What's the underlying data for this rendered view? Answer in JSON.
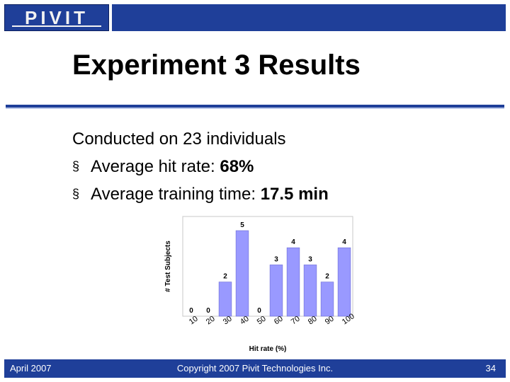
{
  "logo": {
    "text": "PIVIT"
  },
  "slide": {
    "title": "Experiment 3 Results",
    "intro": "Conducted on 23 individuals",
    "bullets": [
      {
        "marker": "§",
        "text": "Average hit rate: ",
        "value": "68%"
      },
      {
        "marker": "§",
        "text": "Average training time: ",
        "value": "17.5 min"
      }
    ]
  },
  "footer": {
    "date": "April 2007",
    "copyright": "Copyright 2007 Pivit Technologies Inc.",
    "page": "34"
  },
  "chart_data": {
    "type": "bar",
    "categories": [
      "10",
      "20",
      "30",
      "40",
      "50",
      "60",
      "70",
      "80",
      "90",
      "100"
    ],
    "values": [
      0,
      0,
      2,
      5,
      0,
      3,
      4,
      3,
      2,
      4
    ],
    "xlabel": "Hit rate (%)",
    "ylabel": "# Test Subjects",
    "ylim": [
      0,
      5
    ],
    "grid": false,
    "data_labels": true,
    "colors": {
      "bar": "#9999ff",
      "bar_edge": "#6b6bd6",
      "plot_bg": "#ffffff",
      "frame": "#c8c8c8"
    }
  }
}
